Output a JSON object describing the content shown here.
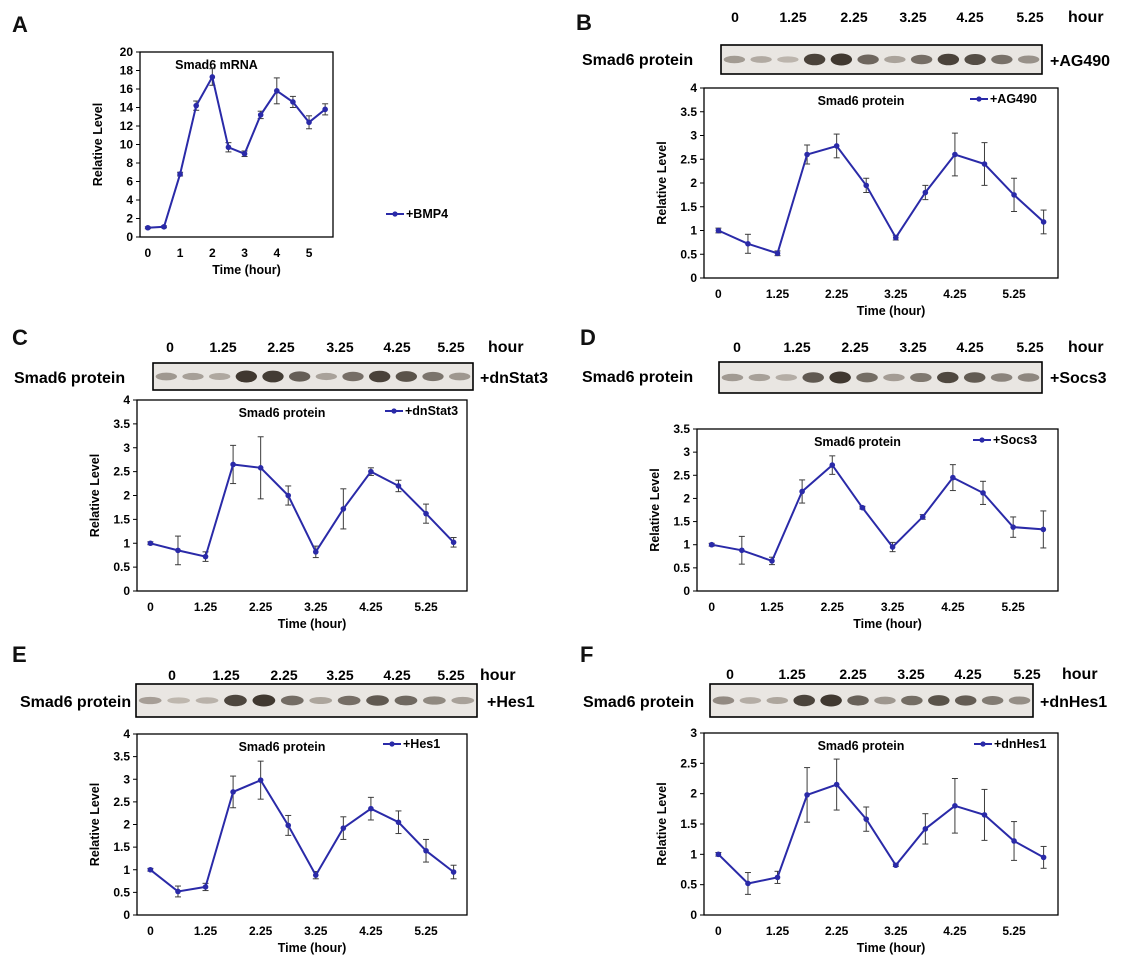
{
  "chart_data": [
    {
      "id": "A",
      "type": "line",
      "panel_letter": "A",
      "title": "Smad6 mRNA",
      "xlabel": "Time (hour)",
      "ylabel": "Relative Level",
      "ylim": [
        0,
        20
      ],
      "y_ticks": [
        "0",
        "2",
        "4",
        "6",
        "8",
        "10",
        "12",
        "14",
        "16",
        "18",
        "20"
      ],
      "x_ticks": [
        "0",
        "1",
        "2",
        "3",
        "4",
        "5"
      ],
      "legend": "+BMP4",
      "legend_position": "bottom-right",
      "series": [
        {
          "name": "+BMP4",
          "x": [
            0,
            0.5,
            1,
            1.5,
            2,
            2.5,
            3,
            3.5,
            4,
            4.5,
            5,
            5.5
          ],
          "values": [
            1.0,
            1.1,
            6.8,
            14.2,
            17.3,
            9.7,
            9.0,
            13.2,
            15.8,
            14.6,
            12.4,
            13.8
          ],
          "errors": [
            0.1,
            0.1,
            0.2,
            0.5,
            0.9,
            0.5,
            0.3,
            0.4,
            1.4,
            0.6,
            0.7,
            0.6
          ]
        }
      ]
    },
    {
      "id": "B",
      "type": "line",
      "panel_letter": "B",
      "title": "Smad6 protein",
      "xlabel": "Time (hour)",
      "ylabel": "Relative Level",
      "ylim": [
        0,
        4
      ],
      "y_ticks": [
        "0",
        "0.5",
        "1",
        "1.5",
        "2",
        "2.5",
        "3",
        "3.5",
        "4"
      ],
      "x_ticks": [
        "0",
        "1.25",
        "2.25",
        "3.25",
        "4.25",
        "5.25"
      ],
      "legend": "+AG490",
      "legend_position": "top-right",
      "blot": {
        "label": "Smad6 protein",
        "treatment": "+AG490",
        "lanes": [
          "0",
          "1.25",
          "2.25",
          "3.25",
          "4.25",
          "5.25"
        ],
        "hour": "hour"
      },
      "series": [
        {
          "name": "+AG490",
          "x": [
            0,
            0.5,
            1,
            1.5,
            2,
            2.5,
            3,
            3.5,
            4,
            4.5,
            5,
            5.5
          ],
          "values": [
            1.0,
            0.72,
            0.52,
            2.6,
            2.78,
            1.95,
            0.85,
            1.8,
            2.6,
            2.4,
            1.75,
            1.18
          ],
          "errors": [
            0.05,
            0.2,
            0.05,
            0.2,
            0.25,
            0.15,
            0.05,
            0.15,
            0.45,
            0.45,
            0.35,
            0.25
          ]
        }
      ]
    },
    {
      "id": "C",
      "type": "line",
      "panel_letter": "C",
      "title": "Smad6 protein",
      "xlabel": "Time (hour)",
      "ylabel": "Relative Level",
      "ylim": [
        0,
        4
      ],
      "y_ticks": [
        "0",
        "0.5",
        "1",
        "1.5",
        "2",
        "2.5",
        "3",
        "3.5",
        "4"
      ],
      "x_ticks": [
        "0",
        "1.25",
        "2.25",
        "3.25",
        "4.25",
        "5.25"
      ],
      "legend": "+dnStat3",
      "legend_position": "top-right",
      "blot": {
        "label": "Smad6 protein",
        "treatment": "+dnStat3",
        "lanes": [
          "0",
          "1.25",
          "2.25",
          "3.25",
          "4.25",
          "5.25"
        ],
        "hour": "hour"
      },
      "series": [
        {
          "name": "+dnStat3",
          "x": [
            0,
            0.5,
            1,
            1.5,
            2,
            2.5,
            3,
            3.5,
            4,
            4.5,
            5,
            5.5
          ],
          "values": [
            1.0,
            0.85,
            0.72,
            2.65,
            2.58,
            2.0,
            0.82,
            1.72,
            2.5,
            2.2,
            1.62,
            1.02
          ],
          "errors": [
            0.03,
            0.3,
            0.1,
            0.4,
            0.65,
            0.2,
            0.12,
            0.42,
            0.08,
            0.12,
            0.2,
            0.1
          ]
        }
      ]
    },
    {
      "id": "D",
      "type": "line",
      "panel_letter": "D",
      "title": "Smad6 protein",
      "xlabel": "Time (hour)",
      "ylabel": "Relative Level",
      "ylim": [
        0,
        3.5
      ],
      "y_ticks": [
        "0",
        "0.5",
        "1",
        "1.5",
        "2",
        "2.5",
        "3",
        "3.5"
      ],
      "x_ticks": [
        "0",
        "1.25",
        "2.25",
        "3.25",
        "4.25",
        "5.25"
      ],
      "legend": "+Socs3",
      "legend_position": "top-right",
      "blot": {
        "label": "Smad6 protein",
        "treatment": "+Socs3",
        "lanes": [
          "0",
          "1.25",
          "2.25",
          "3.25",
          "4.25",
          "5.25"
        ],
        "hour": "hour"
      },
      "series": [
        {
          "name": "+Socs3",
          "x": [
            0,
            0.5,
            1,
            1.5,
            2,
            2.5,
            3,
            3.5,
            4,
            4.5,
            5,
            5.5
          ],
          "values": [
            1.0,
            0.88,
            0.65,
            2.15,
            2.72,
            1.8,
            0.95,
            1.6,
            2.45,
            2.12,
            1.38,
            1.33
          ],
          "errors": [
            0.03,
            0.3,
            0.08,
            0.25,
            0.2,
            0.03,
            0.1,
            0.05,
            0.28,
            0.25,
            0.22,
            0.4
          ]
        }
      ]
    },
    {
      "id": "E",
      "type": "line",
      "panel_letter": "E",
      "title": "Smad6 protein",
      "xlabel": "Time (hour)",
      "ylabel": "Relative Level",
      "ylim": [
        0,
        4
      ],
      "y_ticks": [
        "0",
        "0.5",
        "1",
        "1.5",
        "2",
        "2.5",
        "3",
        "3.5",
        "4"
      ],
      "x_ticks": [
        "0",
        "1.25",
        "2.25",
        "3.25",
        "4.25",
        "5.25"
      ],
      "legend": "+Hes1",
      "legend_position": "top-right",
      "blot": {
        "label": "Smad6 protein",
        "treatment": "+Hes1",
        "lanes": [
          "0",
          "1.25",
          "2.25",
          "3.25",
          "4.25",
          "5.25"
        ],
        "hour": "hour"
      },
      "series": [
        {
          "name": "+Hes1",
          "x": [
            0,
            0.5,
            1,
            1.5,
            2,
            2.5,
            3,
            3.5,
            4,
            4.5,
            5,
            5.5
          ],
          "values": [
            1.0,
            0.52,
            0.62,
            2.72,
            2.98,
            1.98,
            0.88,
            1.92,
            2.35,
            2.05,
            1.42,
            0.95
          ],
          "errors": [
            0.03,
            0.12,
            0.08,
            0.35,
            0.42,
            0.22,
            0.08,
            0.25,
            0.25,
            0.25,
            0.25,
            0.15
          ]
        }
      ]
    },
    {
      "id": "F",
      "type": "line",
      "panel_letter": "F",
      "title": "Smad6 protein",
      "xlabel": "Time (hour)",
      "ylabel": "Relative Level",
      "ylim": [
        0,
        3
      ],
      "y_ticks": [
        "0",
        "0.5",
        "1",
        "1.5",
        "2",
        "2.5",
        "3"
      ],
      "x_ticks": [
        "0",
        "1.25",
        "2.25",
        "3.25",
        "4.25",
        "5.25"
      ],
      "legend": "+dnHes1",
      "legend_position": "top-right",
      "blot": {
        "label": "Smad6 protein",
        "treatment": "+dnHes1",
        "lanes": [
          "0",
          "1.25",
          "2.25",
          "3.25",
          "4.25",
          "5.25"
        ],
        "hour": "hour"
      },
      "series": [
        {
          "name": "+dnHes1",
          "x": [
            0,
            0.5,
            1,
            1.5,
            2,
            2.5,
            3,
            3.5,
            4,
            4.5,
            5,
            5.5
          ],
          "values": [
            1.0,
            0.52,
            0.62,
            1.98,
            2.15,
            1.58,
            0.82,
            1.42,
            1.8,
            1.65,
            1.22,
            0.95
          ],
          "errors": [
            0.03,
            0.18,
            0.1,
            0.45,
            0.42,
            0.2,
            0.02,
            0.25,
            0.45,
            0.42,
            0.32,
            0.18
          ]
        }
      ]
    }
  ],
  "colors": {
    "series": "#2a2aa8",
    "error": "#3c3c3c",
    "axis": "#000000"
  }
}
